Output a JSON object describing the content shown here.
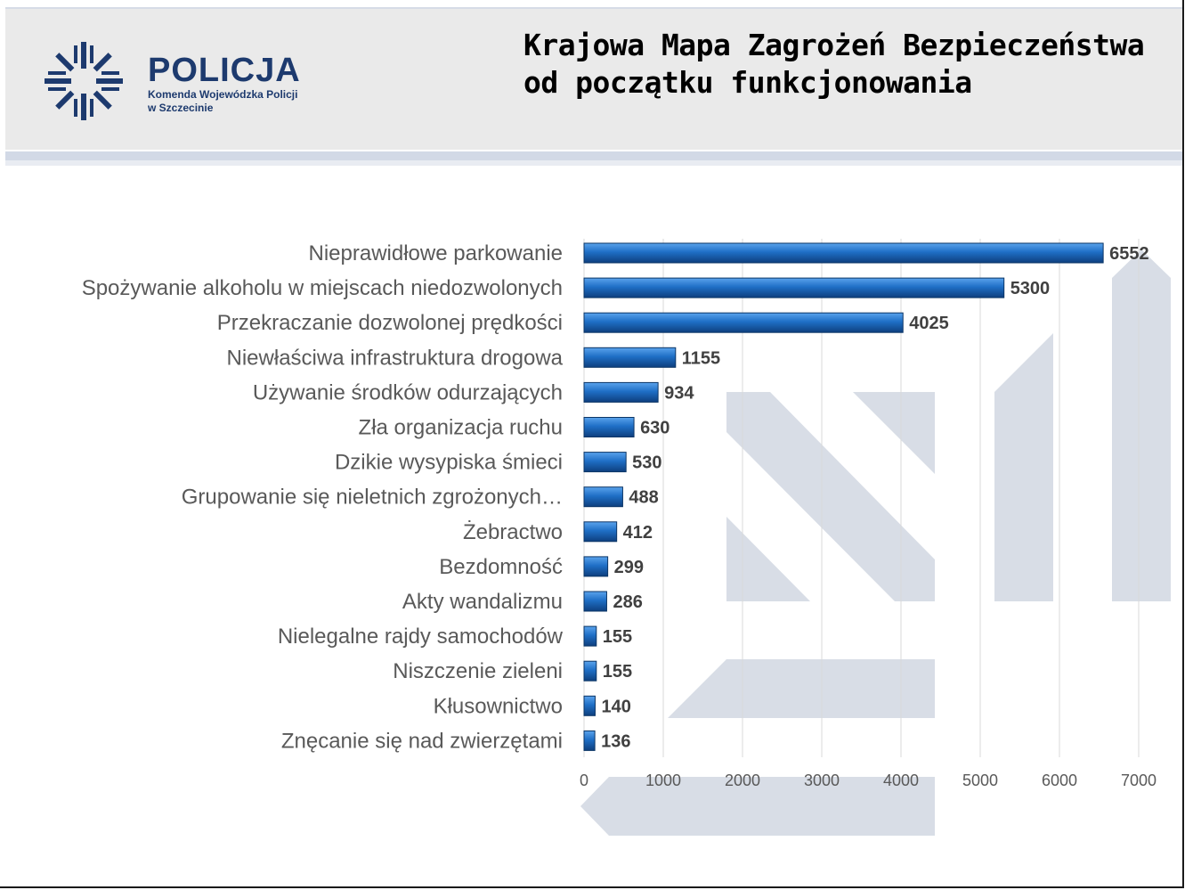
{
  "brand": {
    "name": "POLICJA",
    "subtitle_line1": "Komenda Wojewódzka Policji",
    "subtitle_line2": "w Szczecinie",
    "color": "#1d3a6e"
  },
  "title": {
    "line1": "Krajowa Mapa Zagrożeń Bezpieczeństwa",
    "line2": "od początku funkcjonowania"
  },
  "chart_data": {
    "type": "bar",
    "orientation": "horizontal",
    "categories": [
      "Nieprawidłowe parkowanie",
      "Spożywanie alkoholu w miejscach niedozwolonych",
      "Przekraczanie dozwolonej prędkości",
      "Niewłaściwa infrastruktura drogowa",
      "Używanie środków odurzających",
      "Zła organizacja ruchu",
      "Dzikie wysypiska śmieci",
      "Grupowanie się nieletnich zgrożonych…",
      "Żebractwo",
      "Bezdomność",
      "Akty wandalizmu",
      "Nielegalne rajdy samochodów",
      "Niszczenie zieleni",
      "Kłusownictwo",
      "Znęcanie się nad zwierzętami"
    ],
    "values": [
      6552,
      5300,
      4025,
      1155,
      934,
      630,
      530,
      488,
      412,
      299,
      286,
      155,
      155,
      140,
      136
    ],
    "xlim": [
      0,
      7000
    ],
    "xticks": [
      0,
      1000,
      2000,
      3000,
      4000,
      5000,
      6000,
      7000
    ],
    "grid": "vertical",
    "bar_color": "#1f6fc6",
    "title": "",
    "xlabel": "",
    "ylabel": ""
  }
}
